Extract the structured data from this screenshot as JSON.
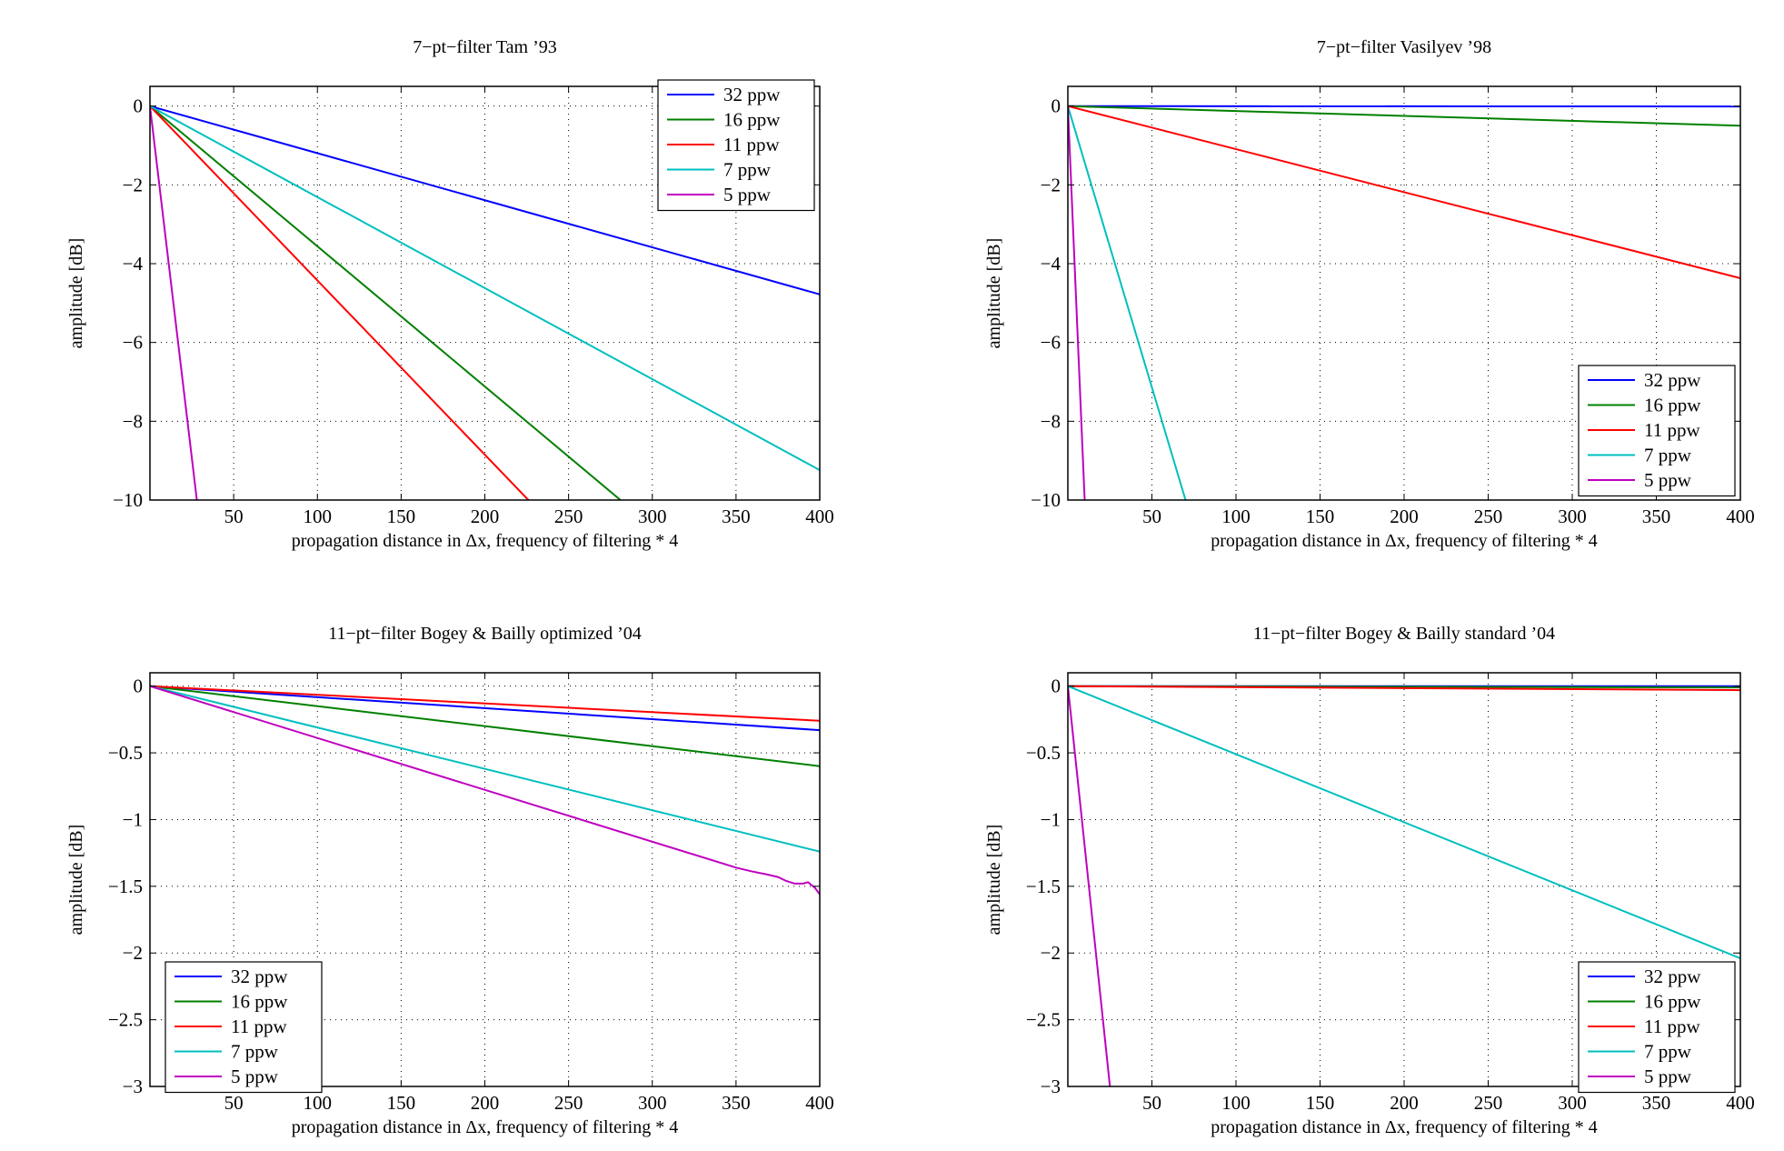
{
  "chart_data": [
    {
      "type": "line",
      "title": "7−pt−filter Tam ’93",
      "xlabel": "propagation distance in Δx, frequency of filtering * 4",
      "ylabel": "amplitude [dB]",
      "xlim": [
        0,
        400
      ],
      "ylim": [
        -10,
        0.5
      ],
      "xticks": [
        50,
        100,
        150,
        200,
        250,
        300,
        350,
        400
      ],
      "xtick_labels": [
        "50",
        "100",
        "150",
        "200",
        "250",
        "300",
        "350",
        "400"
      ],
      "yticks": [
        0,
        -2,
        -4,
        -6,
        -8,
        -10
      ],
      "ytick_labels": [
        "0",
        "−2",
        "−4",
        "−6",
        "−8",
        "−10"
      ],
      "grid": true,
      "legend_position": "top-right",
      "series": [
        {
          "name": "32 ppw",
          "color": "#0000ff",
          "x": [
            0,
            400
          ],
          "y": [
            0,
            -4.78
          ]
        },
        {
          "name": "16 ppw",
          "color": "#008000",
          "x": [
            0,
            281
          ],
          "y": [
            0,
            -10
          ]
        },
        {
          "name": "11 ppw",
          "color": "#ff0000",
          "x": [
            0,
            226
          ],
          "y": [
            0,
            -10
          ]
        },
        {
          "name": "7  ppw",
          "color": "#00bfbf",
          "x": [
            0,
            400
          ],
          "y": [
            0,
            -9.24
          ]
        },
        {
          "name": "5  ppw",
          "color": "#bf00bf",
          "x": [
            0,
            28
          ],
          "y": [
            0,
            -10
          ]
        }
      ]
    },
    {
      "type": "line",
      "title": "7−pt−filter Vasilyev ’98",
      "xlabel": "propagation distance in Δx, frequency of filtering * 4",
      "ylabel": "amplitude [dB]",
      "xlim": [
        0,
        400
      ],
      "ylim": [
        -10,
        0.5
      ],
      "xticks": [
        50,
        100,
        150,
        200,
        250,
        300,
        350,
        400
      ],
      "xtick_labels": [
        "50",
        "100",
        "150",
        "200",
        "250",
        "300",
        "350",
        "400"
      ],
      "yticks": [
        0,
        -2,
        -4,
        -6,
        -8,
        -10
      ],
      "ytick_labels": [
        "0",
        "−2",
        "−4",
        "−6",
        "−8",
        "−10"
      ],
      "grid": true,
      "legend_position": "bottom-right",
      "series": [
        {
          "name": "32 ppw",
          "color": "#0000ff",
          "x": [
            0,
            400
          ],
          "y": [
            0,
            -0.01
          ]
        },
        {
          "name": "16 ppw",
          "color": "#008000",
          "x": [
            0,
            400
          ],
          "y": [
            0,
            -0.5
          ]
        },
        {
          "name": "11 ppw",
          "color": "#ff0000",
          "x": [
            0,
            400
          ],
          "y": [
            0,
            -4.37
          ]
        },
        {
          "name": "7  ppw",
          "color": "#00bfbf",
          "x": [
            0,
            70
          ],
          "y": [
            0,
            -10
          ]
        },
        {
          "name": "5  ppw",
          "color": "#bf00bf",
          "x": [
            0,
            10
          ],
          "y": [
            0,
            -10
          ]
        }
      ]
    },
    {
      "type": "line",
      "title": "11−pt−filter Bogey & Bailly optimized ’04",
      "xlabel": "propagation distance in Δx, frequency of filtering * 4",
      "ylabel": "amplitude [dB]",
      "xlim": [
        0,
        400
      ],
      "ylim": [
        -3,
        0.1
      ],
      "xticks": [
        50,
        100,
        150,
        200,
        250,
        300,
        350,
        400
      ],
      "xtick_labels": [
        "50",
        "100",
        "150",
        "200",
        "250",
        "300",
        "350",
        "400"
      ],
      "yticks": [
        0,
        -0.5,
        -1,
        -1.5,
        -2,
        -2.5,
        -3
      ],
      "ytick_labels": [
        "0",
        "−0.5",
        "−1",
        "−1.5",
        "−2",
        "−2.5",
        "−3"
      ],
      "grid": true,
      "legend_position": "bottom-left",
      "series": [
        {
          "name": "32 ppw",
          "color": "#0000ff",
          "x": [
            0,
            400
          ],
          "y": [
            0,
            -0.33
          ]
        },
        {
          "name": "16 ppw",
          "color": "#008000",
          "x": [
            0,
            400
          ],
          "y": [
            0,
            -0.6
          ]
        },
        {
          "name": "11 ppw",
          "color": "#ff0000",
          "x": [
            0,
            400
          ],
          "y": [
            0,
            -0.26
          ]
        },
        {
          "name": "7  ppw",
          "color": "#00bfbf",
          "x": [
            0,
            400
          ],
          "y": [
            0,
            -1.24
          ]
        },
        {
          "name": "5  ppw",
          "color": "#bf00bf",
          "x": [
            0,
            350,
            360,
            368,
            375,
            380,
            385,
            390,
            393,
            397,
            400
          ],
          "y": [
            0,
            -1.36,
            -1.39,
            -1.41,
            -1.43,
            -1.46,
            -1.48,
            -1.48,
            -1.47,
            -1.51,
            -1.56
          ]
        }
      ]
    },
    {
      "type": "line",
      "title": "11−pt−filter Bogey & Bailly standard ’04",
      "xlabel": "propagation distance in Δx, frequency of filtering * 4",
      "ylabel": "amplitude [dB]",
      "xlim": [
        0,
        400
      ],
      "ylim": [
        -3,
        0.1
      ],
      "xticks": [
        50,
        100,
        150,
        200,
        250,
        300,
        350,
        400
      ],
      "xtick_labels": [
        "50",
        "100",
        "150",
        "200",
        "250",
        "300",
        "350",
        "400"
      ],
      "yticks": [
        0,
        -0.5,
        -1,
        -1.5,
        -2,
        -2.5,
        -3
      ],
      "ytick_labels": [
        "0",
        "−0.5",
        "−1",
        "−1.5",
        "−2",
        "−2.5",
        "−3"
      ],
      "grid": true,
      "legend_position": "bottom-right",
      "series": [
        {
          "name": "32 ppw",
          "color": "#0000ff",
          "x": [
            0,
            400
          ],
          "y": [
            0,
            0
          ]
        },
        {
          "name": "16 ppw",
          "color": "#008000",
          "x": [
            0,
            400
          ],
          "y": [
            0,
            -0.01
          ]
        },
        {
          "name": "11 ppw",
          "color": "#ff0000",
          "x": [
            0,
            400
          ],
          "y": [
            0,
            -0.03
          ]
        },
        {
          "name": "7  ppw",
          "color": "#00bfbf",
          "x": [
            0,
            400
          ],
          "y": [
            0,
            -2.04
          ]
        },
        {
          "name": "5  ppw",
          "color": "#bf00bf",
          "x": [
            0,
            25
          ],
          "y": [
            0,
            -3
          ]
        }
      ]
    }
  ]
}
